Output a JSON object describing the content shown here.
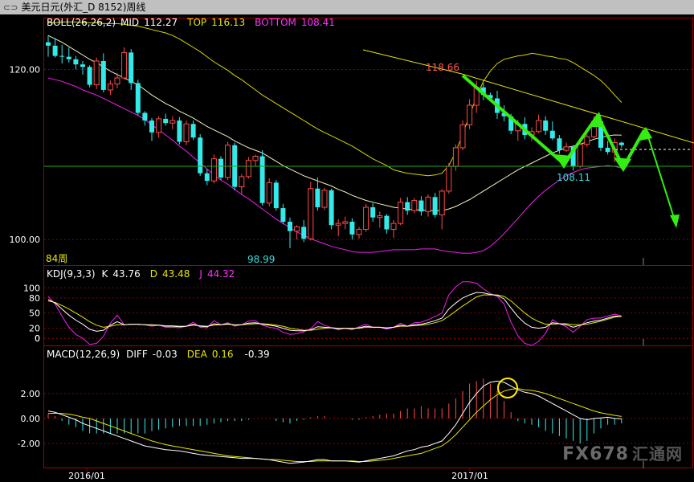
{
  "window": {
    "title": "美元日元(外汇_D 8152)周线"
  },
  "watermark": {
    "text": "FX678",
    "cn": "汇通网"
  },
  "chart_data": {
    "type": "candlestick",
    "period_label": "84周",
    "x_ticks": [
      "2016/01",
      "2017/01"
    ],
    "main": {
      "indicator": "BOLL(26,26,2)",
      "mid_label": "MID",
      "mid_value": "112.27",
      "top_label": "TOP",
      "top_value": "116.13",
      "bottom_label": "BOTTOM",
      "bottom_value": "108.41",
      "ylim": [
        97,
        126
      ],
      "y_ticks": [
        "100.00",
        "120.00"
      ],
      "annotations": {
        "high": "118.66",
        "low": "98.99",
        "swing_low": "108.11"
      },
      "candles": [
        [
          123.2,
          124.0,
          121.5,
          122.8
        ],
        [
          122.8,
          123.7,
          121.4,
          121.6
        ],
        [
          121.6,
          122.9,
          120.7,
          121.5
        ],
        [
          121.5,
          122.6,
          120.8,
          121.2
        ],
        [
          121.2,
          121.6,
          120.0,
          120.6
        ],
        [
          120.6,
          121.0,
          119.4,
          120.3
        ],
        [
          120.3,
          120.5,
          117.9,
          118.2
        ],
        [
          118.2,
          121.4,
          117.7,
          121.0
        ],
        [
          121.0,
          121.9,
          117.3,
          117.6
        ],
        [
          117.6,
          118.7,
          117.0,
          118.3
        ],
        [
          118.3,
          119.6,
          117.8,
          119.0
        ],
        [
          119.0,
          122.6,
          118.8,
          122.0
        ],
        [
          122.0,
          122.4,
          117.6,
          118.4
        ],
        [
          118.4,
          118.8,
          114.6,
          114.9
        ],
        [
          114.9,
          115.1,
          113.4,
          114.0
        ],
        [
          114.0,
          114.3,
          111.6,
          112.6
        ],
        [
          112.6,
          114.5,
          112.0,
          114.2
        ],
        [
          114.2,
          114.8,
          113.4,
          113.7
        ],
        [
          113.7,
          114.5,
          113.0,
          114.0
        ],
        [
          114.0,
          114.4,
          111.2,
          111.5
        ],
        [
          111.5,
          114.0,
          111.1,
          113.6
        ],
        [
          113.6,
          114.0,
          111.7,
          112.0
        ],
        [
          112.0,
          112.4,
          107.5,
          107.8
        ],
        [
          107.8,
          108.3,
          106.4,
          106.9
        ],
        [
          106.9,
          110.0,
          106.6,
          109.5
        ],
        [
          109.5,
          109.8,
          107.0,
          107.3
        ],
        [
          107.3,
          111.5,
          107.0,
          111.1
        ],
        [
          111.1,
          111.4,
          105.8,
          106.2
        ],
        [
          106.2,
          107.7,
          105.3,
          107.4
        ],
        [
          107.4,
          109.7,
          107.2,
          109.3
        ],
        [
          109.3,
          110.0,
          108.6,
          109.8
        ],
        [
          109.8,
          110.5,
          104.0,
          104.3
        ],
        [
          104.3,
          107.2,
          103.9,
          106.7
        ],
        [
          106.7,
          107.0,
          103.4,
          103.7
        ],
        [
          103.7,
          104.2,
          101.8,
          102.1
        ],
        [
          102.1,
          102.6,
          98.99,
          101.0
        ],
        [
          101.0,
          101.7,
          100.0,
          101.5
        ],
        [
          101.5,
          102.3,
          99.7,
          100.1
        ],
        [
          100.1,
          106.8,
          99.9,
          106.0
        ],
        [
          106.0,
          107.3,
          103.4,
          103.8
        ],
        [
          103.8,
          106.1,
          103.5,
          105.8
        ],
        [
          105.8,
          106.0,
          101.2,
          101.7
        ],
        [
          101.7,
          102.4,
          100.4,
          101.9
        ],
        [
          101.9,
          102.7,
          101.2,
          102.1
        ],
        [
          102.1,
          102.5,
          100.0,
          100.6
        ],
        [
          100.6,
          101.5,
          100.1,
          101.2
        ],
        [
          101.2,
          104.2,
          100.9,
          103.8
        ],
        [
          103.8,
          104.3,
          102.1,
          102.6
        ],
        [
          102.6,
          103.3,
          101.4,
          102.8
        ],
        [
          102.8,
          103.0,
          100.7,
          101.2
        ],
        [
          101.2,
          102.3,
          100.2,
          101.9
        ],
        [
          101.9,
          104.9,
          101.7,
          104.4
        ],
        [
          104.4,
          105.0,
          102.9,
          103.4
        ],
        [
          103.4,
          104.9,
          103.1,
          104.6
        ],
        [
          104.6,
          105.1,
          102.8,
          103.3
        ],
        [
          103.3,
          105.3,
          102.7,
          105.0
        ],
        [
          105.0,
          105.5,
          102.6,
          102.9
        ],
        [
          102.9,
          105.9,
          101.2,
          105.7
        ],
        [
          105.7,
          109.0,
          105.4,
          108.6
        ],
        [
          108.6,
          111.2,
          108.1,
          110.8
        ],
        [
          110.8,
          114.0,
          110.5,
          113.5
        ],
        [
          113.5,
          116.5,
          113.0,
          115.8
        ],
        [
          115.8,
          118.66,
          114.9,
          117.9
        ],
        [
          117.9,
          118.4,
          116.4,
          117.0
        ],
        [
          117.0,
          117.3,
          116.3,
          116.6
        ],
        [
          116.6,
          117.5,
          114.2,
          114.9
        ],
        [
          114.9,
          115.8,
          113.9,
          114.5
        ],
        [
          114.5,
          114.8,
          112.4,
          112.8
        ],
        [
          112.8,
          114.1,
          111.6,
          113.6
        ],
        [
          113.6,
          114.4,
          111.8,
          112.3
        ],
        [
          112.3,
          113.2,
          111.6,
          112.7
        ],
        [
          112.7,
          114.7,
          112.5,
          114.0
        ],
        [
          114.0,
          114.5,
          112.3,
          112.8
        ],
        [
          112.8,
          113.9,
          111.7,
          111.9
        ],
        [
          111.9,
          112.3,
          110.1,
          110.5
        ],
        [
          110.5,
          111.4,
          110.3,
          110.9
        ],
        [
          110.9,
          111.1,
          108.11,
          108.6
        ],
        [
          108.6,
          111.5,
          108.4,
          111.2
        ],
        [
          111.2,
          112.4,
          110.9,
          112.1
        ],
        [
          112.1,
          114.5,
          111.9,
          113.9
        ],
        [
          113.9,
          114.3,
          110.4,
          110.8
        ],
        [
          110.8,
          111.6,
          110.0,
          110.3
        ],
        [
          110.3,
          111.9,
          109.1,
          111.4
        ],
        [
          111.4,
          111.5,
          110.8,
          111.1
        ]
      ],
      "boll_mid": [
        124.0,
        123.6,
        123.2,
        122.7,
        122.2,
        121.7,
        121.2,
        120.8,
        120.3,
        119.8,
        119.4,
        119.0,
        118.6,
        118.2,
        117.6,
        117.0,
        116.5,
        116.0,
        115.6,
        115.1,
        114.7,
        114.3,
        113.8,
        113.3,
        112.9,
        112.5,
        112.1,
        111.6,
        111.2,
        110.8,
        110.5,
        110.2,
        109.7,
        109.2,
        108.7,
        108.3,
        107.9,
        107.5,
        107.2,
        106.9,
        106.6,
        106.3,
        105.9,
        105.6,
        105.2,
        104.9,
        104.6,
        104.4,
        104.2,
        104.0,
        103.8,
        103.7,
        103.6,
        103.5,
        103.5,
        103.4,
        103.4,
        103.4,
        103.6,
        103.9,
        104.3,
        104.7,
        105.2,
        105.7,
        106.2,
        106.7,
        107.2,
        107.7,
        108.2,
        108.6,
        109.0,
        109.4,
        109.8,
        110.2,
        110.5,
        110.8,
        111.0,
        111.2,
        111.5,
        111.8,
        112.0,
        112.2,
        112.3,
        112.27
      ],
      "boll_top": [
        125.5,
        125.5,
        125.6,
        125.6,
        125.6,
        125.5,
        125.5,
        125.5,
        125.4,
        125.4,
        125.4,
        125.3,
        125.2,
        125.1,
        124.9,
        124.7,
        124.5,
        124.3,
        124.0,
        123.6,
        123.1,
        122.6,
        122.1,
        121.5,
        120.9,
        120.4,
        119.9,
        119.3,
        118.8,
        118.2,
        117.6,
        117.0,
        116.5,
        116.0,
        115.5,
        115.0,
        114.5,
        114.0,
        113.5,
        113.0,
        112.6,
        112.2,
        111.8,
        111.4,
        111.0,
        110.5,
        110.0,
        109.5,
        109.1,
        108.7,
        108.2,
        108.0,
        107.8,
        107.7,
        107.6,
        107.5,
        107.6,
        107.8,
        108.7,
        110.3,
        112.4,
        114.6,
        116.8,
        118.6,
        119.8,
        120.7,
        121.2,
        121.4,
        121.6,
        121.7,
        121.9,
        121.8,
        121.6,
        121.5,
        121.3,
        121.2,
        120.8,
        120.3,
        119.8,
        119.3,
        118.7,
        117.9,
        117.0,
        116.13
      ],
      "boll_bottom": [
        119.0,
        118.8,
        118.6,
        118.3,
        118.0,
        117.6,
        117.3,
        117.0,
        116.6,
        116.2,
        115.8,
        115.4,
        115.0,
        114.6,
        114.1,
        113.5,
        112.9,
        112.3,
        111.7,
        111.0,
        110.4,
        109.7,
        109.0,
        108.3,
        107.6,
        107.0,
        106.5,
        105.9,
        105.3,
        104.8,
        104.2,
        103.6,
        103.0,
        102.4,
        101.9,
        101.4,
        100.9,
        100.5,
        100.1,
        99.8,
        99.5,
        99.2,
        99.0,
        98.8,
        98.6,
        98.5,
        98.5,
        98.5,
        98.6,
        98.7,
        98.8,
        98.8,
        98.8,
        98.8,
        98.9,
        98.9,
        98.9,
        98.7,
        98.6,
        98.5,
        98.4,
        98.4,
        98.5,
        98.7,
        99.2,
        99.9,
        100.7,
        101.6,
        102.5,
        103.4,
        104.3,
        105.1,
        105.8,
        106.4,
        107.0,
        107.5,
        107.9,
        108.2,
        108.4,
        108.5,
        108.6,
        108.7,
        108.6,
        108.41
      ]
    },
    "kdj": {
      "indicator": "KDJ(9,3,3)",
      "k_label": "K",
      "k_value": "43.76",
      "d_label": "D",
      "d_value": "43.48",
      "j_label": "J",
      "j_value": "44.32",
      "ylim": [
        -14,
        110
      ],
      "y_ticks": [
        "100",
        "80",
        "50",
        "20",
        "0",
        "0"
      ],
      "y_tick_values": [
        100,
        80,
        50,
        20,
        0,
        0
      ],
      "k": [
        77,
        70,
        58,
        46,
        36,
        28,
        18,
        14,
        16,
        26,
        33,
        27,
        28,
        28,
        27,
        26,
        26,
        24,
        24,
        23,
        24,
        28,
        24,
        23,
        29,
        27,
        29,
        26,
        27,
        30,
        31,
        28,
        26,
        24,
        20,
        16,
        15,
        15,
        17,
        23,
        22,
        21,
        19,
        20,
        19,
        21,
        24,
        22,
        22,
        20,
        22,
        26,
        24,
        27,
        28,
        31,
        35,
        40,
        58,
        70,
        80,
        86,
        91,
        90,
        87,
        85,
        78,
        60,
        43,
        30,
        22,
        20,
        22,
        31,
        29,
        27,
        22,
        26,
        31,
        34,
        36,
        40,
        44,
        43.76
      ],
      "d": [
        74,
        71,
        65,
        58,
        50,
        42,
        33,
        26,
        22,
        24,
        27,
        27,
        28,
        28,
        27,
        27,
        26,
        25,
        25,
        24,
        24,
        26,
        25,
        24,
        26,
        27,
        28,
        27,
        27,
        28,
        29,
        29,
        28,
        26,
        24,
        20,
        18,
        16,
        16,
        18,
        20,
        21,
        20,
        20,
        20,
        20,
        22,
        22,
        22,
        21,
        22,
        24,
        24,
        25,
        26,
        28,
        31,
        35,
        44,
        54,
        64,
        73,
        82,
        86,
        86,
        86,
        83,
        74,
        62,
        50,
        40,
        33,
        28,
        28,
        29,
        29,
        27,
        27,
        28,
        31,
        34,
        38,
        42,
        43.48
      ],
      "j": [
        83,
        68,
        44,
        22,
        8,
        0,
        -12,
        -10,
        4,
        30,
        46,
        27,
        28,
        28,
        27,
        24,
        26,
        22,
        22,
        21,
        24,
        32,
        22,
        21,
        35,
        27,
        31,
        24,
        27,
        34,
        35,
        26,
        22,
        20,
        12,
        8,
        9,
        13,
        19,
        33,
        26,
        21,
        17,
        20,
        17,
        23,
        28,
        22,
        22,
        18,
        22,
        30,
        24,
        31,
        32,
        37,
        43,
        50,
        86,
        102,
        112,
        112,
        109,
        98,
        89,
        83,
        68,
        32,
        5,
        -10,
        -14,
        -6,
        10,
        37,
        29,
        23,
        12,
        24,
        37,
        40,
        40,
        44,
        48,
        44.32
      ]
    },
    "macd": {
      "indicator": "MACD(12,26,9)",
      "diff_label": "DIFF",
      "diff_value": "-0.03",
      "dea_label": "DEA",
      "dea_value": "0.16",
      "macd_value": "-0.39",
      "ylim": [
        -4.0,
        4.7
      ],
      "y_ticks": [
        "2.00",
        "0.00",
        "-2.00"
      ],
      "y_tick_values": [
        2,
        0,
        -2
      ],
      "diff": [
        0.6,
        0.5,
        0.3,
        0.1,
        -0.1,
        -0.4,
        -0.6,
        -0.8,
        -1.0,
        -1.2,
        -1.4,
        -1.6,
        -1.8,
        -2.0,
        -2.2,
        -2.3,
        -2.4,
        -2.5,
        -2.55,
        -2.6,
        -2.7,
        -2.8,
        -2.9,
        -2.95,
        -3.0,
        -3.05,
        -3.1,
        -3.15,
        -3.2,
        -3.2,
        -3.2,
        -3.25,
        -3.3,
        -3.4,
        -3.5,
        -3.6,
        -3.55,
        -3.5,
        -3.4,
        -3.3,
        -3.3,
        -3.4,
        -3.4,
        -3.4,
        -3.45,
        -3.5,
        -3.4,
        -3.3,
        -3.2,
        -3.1,
        -3.0,
        -2.8,
        -2.6,
        -2.5,
        -2.3,
        -2.2,
        -2.0,
        -1.8,
        -1.2,
        -0.5,
        0.4,
        1.3,
        2.0,
        2.6,
        2.9,
        3.0,
        2.9,
        2.6,
        2.3,
        2.1,
        2.0,
        1.8,
        1.5,
        1.2,
        0.9,
        0.6,
        0.3,
        0.0,
        -0.1,
        0.0,
        0.05,
        0.1,
        0.0,
        -0.03
      ],
      "dea": [
        0.4,
        0.42,
        0.4,
        0.35,
        0.25,
        0.1,
        0.0,
        -0.2,
        -0.4,
        -0.6,
        -0.8,
        -1.0,
        -1.2,
        -1.4,
        -1.6,
        -1.8,
        -1.95,
        -2.1,
        -2.2,
        -2.3,
        -2.4,
        -2.5,
        -2.6,
        -2.7,
        -2.8,
        -2.9,
        -3.0,
        -3.05,
        -3.1,
        -3.15,
        -3.2,
        -3.25,
        -3.3,
        -3.3,
        -3.35,
        -3.4,
        -3.45,
        -3.45,
        -3.45,
        -3.4,
        -3.4,
        -3.4,
        -3.4,
        -3.4,
        -3.4,
        -3.45,
        -3.45,
        -3.4,
        -3.35,
        -3.3,
        -3.2,
        -3.1,
        -3.0,
        -2.9,
        -2.8,
        -2.6,
        -2.4,
        -2.2,
        -1.8,
        -1.3,
        -0.7,
        -0.1,
        0.5,
        1.0,
        1.5,
        1.9,
        2.2,
        2.35,
        2.4,
        2.3,
        2.25,
        2.15,
        2.0,
        1.8,
        1.6,
        1.4,
        1.2,
        1.0,
        0.8,
        0.6,
        0.45,
        0.35,
        0.25,
        0.16
      ],
      "hist": [
        0.4,
        0.2,
        -0.2,
        -0.5,
        -0.7,
        -1.0,
        -1.2,
        -1.2,
        -1.2,
        -1.2,
        -1.2,
        -1.2,
        -1.2,
        -1.2,
        -1.2,
        -1.0,
        -0.9,
        -0.8,
        -0.7,
        -0.6,
        -0.6,
        -0.6,
        -0.6,
        -0.5,
        -0.4,
        -0.3,
        -0.2,
        -0.2,
        -0.2,
        -0.1,
        0.0,
        0.0,
        0.0,
        -0.2,
        -0.3,
        -0.4,
        -0.2,
        -0.1,
        0.1,
        0.2,
        0.2,
        0.0,
        0.0,
        0.0,
        -0.1,
        -0.1,
        0.1,
        0.2,
        0.3,
        0.4,
        0.4,
        0.6,
        0.8,
        0.8,
        1.0,
        0.8,
        0.8,
        0.8,
        1.2,
        1.6,
        2.2,
        2.8,
        3.0,
        3.2,
        2.8,
        2.2,
        1.4,
        0.5,
        -0.2,
        -0.4,
        -0.5,
        -0.7,
        -1.0,
        -1.2,
        -1.4,
        -1.6,
        -1.8,
        -2.0,
        -1.8,
        -1.2,
        -0.8,
        -0.5,
        -0.5,
        -0.39
      ]
    }
  }
}
